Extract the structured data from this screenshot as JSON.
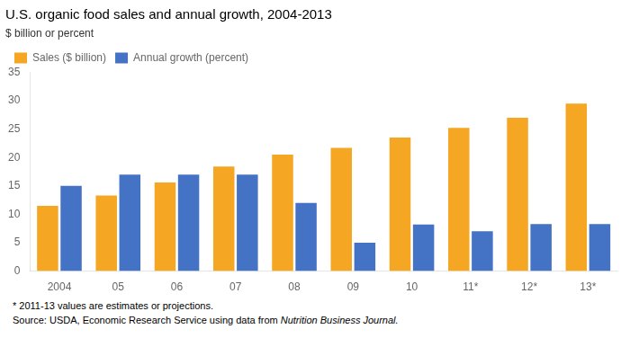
{
  "chart_data": {
    "type": "bar",
    "title": "U.S. organic food sales and annual growth, 2004-2013",
    "ylabel": "$ billion or percent",
    "categories": [
      "2004",
      "05",
      "06",
      "07",
      "08",
      "09",
      "10",
      "11*",
      "12*",
      "13*"
    ],
    "series": [
      {
        "name": "Sales ($ billion)",
        "color": "#F5A623",
        "values": [
          11.5,
          13.3,
          15.6,
          18.4,
          20.5,
          21.7,
          23.5,
          25.2,
          27.0,
          29.5
        ]
      },
      {
        "name": "Annual growth (percent)",
        "color": "#4472C4",
        "values": [
          15.0,
          17.0,
          17.0,
          17.0,
          12.0,
          5.0,
          8.2,
          7.0,
          8.3,
          8.3
        ]
      }
    ],
    "ylim": [
      0,
      35
    ],
    "yticks": [
      0,
      5,
      10,
      15,
      20,
      25,
      30,
      35
    ],
    "grid": false,
    "legend": "upper left",
    "footnote": "* 2011-13 values are estimates or projections.",
    "source": "Source: USDA, Economic Research Service using data from ",
    "source_italic": "Nutrition Business Journal."
  }
}
